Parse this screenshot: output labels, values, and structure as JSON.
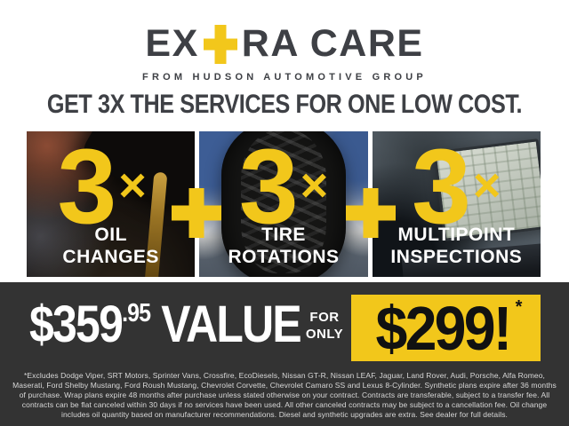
{
  "logo": {
    "word_start": "EX",
    "word_end": "RA CARE",
    "tagline": "FROM HUDSON AUTOMOTIVE GROUP"
  },
  "headline": "GET 3X THE SERVICES FOR ONE LOW COST.",
  "panels": [
    {
      "multiplier": "3",
      "times": "×",
      "label_line1": "OIL",
      "label_line2": "CHANGES",
      "photo": "oil-pouring-photo"
    },
    {
      "multiplier": "3",
      "times": "×",
      "label_line1": "TIRE",
      "label_line2": "ROTATIONS",
      "photo": "tire-photo"
    },
    {
      "multiplier": "3",
      "times": "×",
      "label_line1": "MULTIPOINT",
      "label_line2": "INSPECTIONS",
      "photo": "laptop-inspection-photo"
    }
  ],
  "pricing": {
    "value_amount": "$359",
    "value_cents": ".95",
    "value_label": "VALUE",
    "for_label": "FOR",
    "only_label": "ONLY",
    "sale_price": "$299!",
    "footnote_marker": "*"
  },
  "disclaimer": "*Excludes Dodge Viper, SRT Motors, Sprinter Vans, Crossfire, EcoDiesels, Nissan GT-R, Nissan LEAF, Jaguar, Land Rover, Audi, Porsche, Alfa Romeo, Maserati, Ford Shelby Mustang, Ford Roush Mustang, Chevrolet Corvette, Chevrolet Camaro SS and Lexus 8-Cylinder. Synthetic plans expire after 36 months of purchase. Wrap plans expire 48 months after purchase unless stated otherwise on your contract. Contracts are transferable, subject to a transfer fee. All contracts can be flat canceled within 30 days if no services have been used. All other canceled contracts may be subject to a cancellation fee. Oil change includes oil quantity based on manufacturer recommendations. Diesel and synthetic upgrades are extra. See dealer for full details.",
  "icons": {
    "logo_plus": "plus-icon",
    "separator_plus": "plus-icon"
  },
  "colors": {
    "accent_yellow": "#F2C71B",
    "charcoal_text": "#3E4045",
    "price_bar_background": "#333333",
    "panel_text_white": "#FFFFFF",
    "sale_price_text": "#111111"
  }
}
